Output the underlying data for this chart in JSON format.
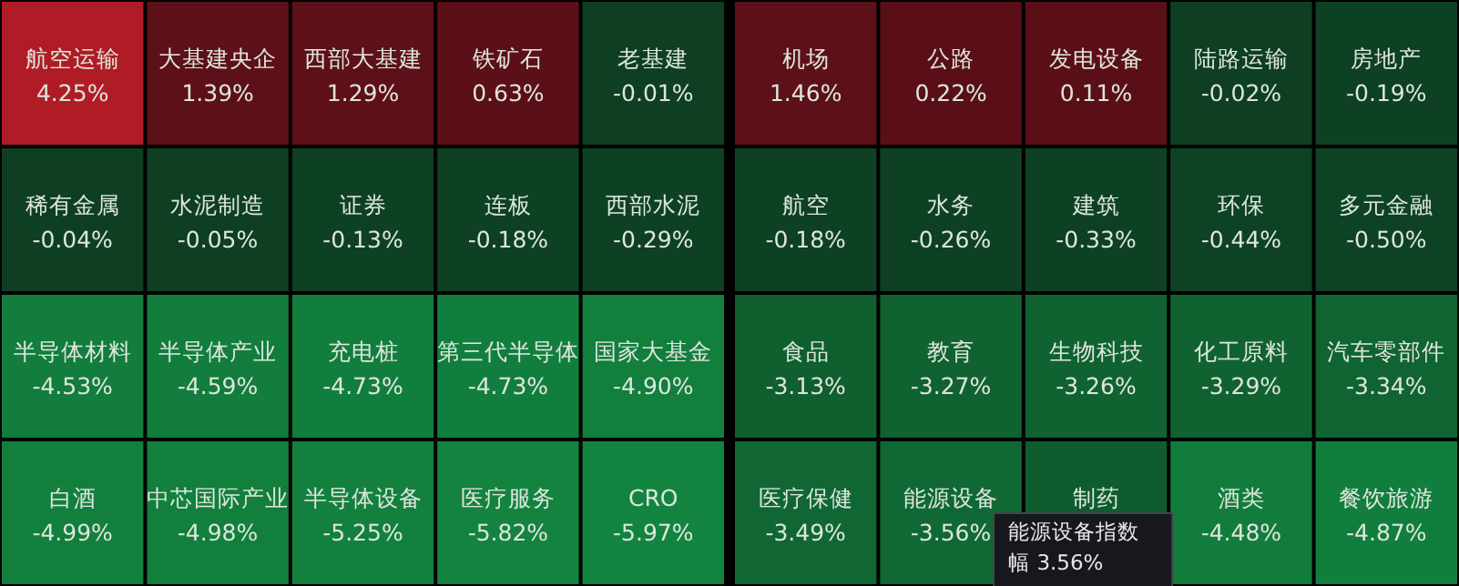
{
  "chart_data": [
    {
      "type": "other",
      "categories": [
        "航空运输",
        "大基建央企",
        "西部大基建",
        "铁矿石",
        "老基建",
        "稀有金属",
        "水泥制造",
        "证券",
        "连板",
        "西部水泥",
        "半导体材料",
        "半导体产业",
        "充电桩",
        "第三代半导体",
        "国家大基金",
        "白酒",
        "中芯国际产业",
        "半导体设备",
        "医疗服务",
        "CRO"
      ],
      "values": [
        4.25,
        1.39,
        1.29,
        0.63,
        -0.01,
        -0.04,
        -0.05,
        -0.13,
        -0.18,
        -0.29,
        -4.53,
        -4.59,
        -4.73,
        -4.73,
        -4.9,
        -4.99,
        -4.98,
        -5.25,
        -5.82,
        -5.97
      ],
      "value_labels": [
        "4.25%",
        "1.39%",
        "1.29%",
        "0.63%",
        "-0.01%",
        "-0.04%",
        "-0.05%",
        "-0.13%",
        "-0.18%",
        "-0.29%",
        "-4.53%",
        "-4.59%",
        "-4.73%",
        "-4.73%",
        "-4.90%",
        "-4.99%",
        "-4.98%",
        "-5.25%",
        "-5.82%",
        "-5.97%"
      ]
    },
    {
      "type": "other",
      "categories": [
        "机场",
        "公路",
        "发电设备",
        "陆路运输",
        "房地产",
        "航空",
        "水务",
        "建筑",
        "环保",
        "多元金融",
        "食品",
        "教育",
        "生物科技",
        "化工原料",
        "汽车零部件",
        "医疗保健",
        "能源设备",
        "制药",
        "酒类",
        "餐饮旅游"
      ],
      "values": [
        1.46,
        0.22,
        0.11,
        -0.02,
        -0.19,
        -0.18,
        -0.26,
        -0.33,
        -0.44,
        -0.5,
        -3.13,
        -3.27,
        -3.26,
        -3.29,
        -3.34,
        -3.49,
        -3.56,
        null,
        -4.48,
        -4.87
      ],
      "value_labels": [
        "1.46%",
        "0.22%",
        "0.11%",
        "-0.02%",
        "-0.19%",
        "-0.18%",
        "-0.26%",
        "-0.33%",
        "-0.44%",
        "-0.50%",
        "-3.13%",
        "-3.27%",
        "-3.26%",
        "-3.29%",
        "-3.34%",
        "-3.49%",
        "-3.56%",
        null,
        "-4.48%",
        "-4.87%"
      ],
      "annotations": [
        "能源设备指数",
        "幅 3.56%"
      ]
    }
  ]
}
